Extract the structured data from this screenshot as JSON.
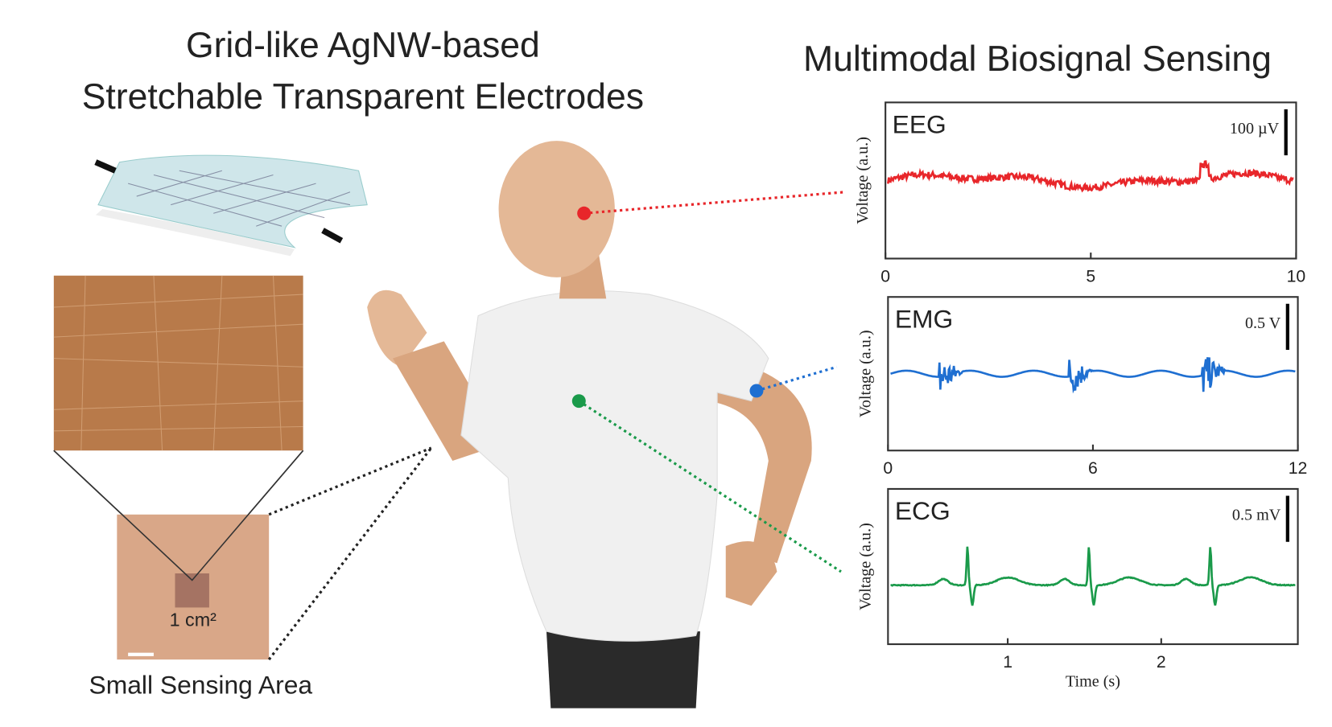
{
  "title_left": [
    "Grid-like AgNW-based",
    "Stretchable Transparent Electrodes"
  ],
  "title_right": "Multimodal Biosignal Sensing",
  "area_label": "1 cm²",
  "caption_left": "Small Sensing Area",
  "plots": [
    {
      "label": "EEG",
      "scale_bar": "100 µV",
      "color": "#e8262a",
      "ylabel": "Voltage (a.u.)",
      "xlim": [
        0,
        10
      ],
      "xticks": [
        0,
        5,
        10
      ]
    },
    {
      "label": "EMG",
      "scale_bar": "0.5 V",
      "color": "#1f6fd1",
      "ylabel": "Voltage (a.u.)",
      "xlim": [
        0,
        12
      ],
      "xticks": [
        0,
        6,
        12
      ]
    },
    {
      "label": "ECG",
      "scale_bar": "0.5 mV",
      "color": "#1a9a4a",
      "ylabel": "Voltage (a.u.)",
      "xlim": [
        0.22,
        2.89
      ],
      "xticks": [
        1,
        2
      ],
      "xlabel": "Time (s)"
    }
  ]
}
